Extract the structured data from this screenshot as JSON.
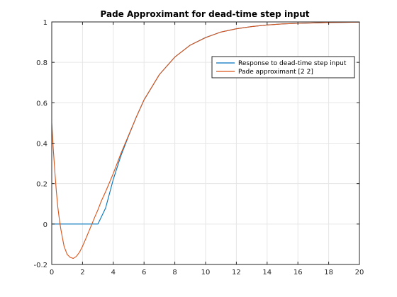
{
  "chart_data": {
    "type": "line",
    "title": "Pade Approximant for dead-time step input",
    "xlabel": "",
    "ylabel": "",
    "xlim": [
      0,
      20
    ],
    "ylim": [
      -0.2,
      1
    ],
    "xticks": [
      "0",
      "2",
      "4",
      "6",
      "8",
      "10",
      "12",
      "14",
      "16",
      "18",
      "20"
    ],
    "yticks": [
      "-0.2",
      "0",
      "0.2",
      "0.4",
      "0.6",
      "0.8",
      "1"
    ],
    "grid": true,
    "legend_position": "top-right",
    "series": [
      {
        "name": "Response to dead-time step input",
        "color": "#0072bd",
        "x": [
          0,
          1,
          2,
          3,
          3.5,
          4,
          4.5,
          5,
          5.5,
          6,
          7,
          8,
          9,
          10,
          11,
          12,
          13,
          14,
          15,
          16,
          17,
          18,
          19,
          20
        ],
        "y": [
          0,
          0,
          0,
          0,
          0.079,
          0.221,
          0.339,
          0.437,
          0.53,
          0.614,
          0.74,
          0.826,
          0.885,
          0.923,
          0.95,
          0.966,
          0.977,
          0.985,
          0.99,
          0.993,
          0.995,
          0.997,
          0.998,
          0.999
        ]
      },
      {
        "name": "Pade approximant [2 2]",
        "color": "#d95319",
        "x": [
          0,
          0.1,
          0.2,
          0.3,
          0.4,
          0.5,
          0.6,
          0.7,
          0.8,
          1.0,
          1.2,
          1.4,
          1.6,
          1.8,
          2.0,
          2.2,
          2.5,
          2.8,
          3.0,
          3.2,
          3.5,
          4.0,
          4.5,
          5.0,
          5.5,
          6,
          7,
          8,
          9,
          10,
          11,
          12,
          13,
          14,
          15,
          16,
          17,
          18,
          19,
          20
        ],
        "y": [
          0.5,
          0.37,
          0.26,
          0.16,
          0.08,
          0.02,
          -0.03,
          -0.07,
          -0.11,
          -0.15,
          -0.165,
          -0.17,
          -0.16,
          -0.14,
          -0.11,
          -0.075,
          -0.02,
          0.035,
          0.07,
          0.11,
          0.16,
          0.25,
          0.35,
          0.44,
          0.53,
          0.615,
          0.74,
          0.826,
          0.885,
          0.922,
          0.95,
          0.966,
          0.977,
          0.985,
          0.99,
          0.993,
          0.995,
          0.997,
          0.998,
          0.999
        ]
      }
    ]
  }
}
